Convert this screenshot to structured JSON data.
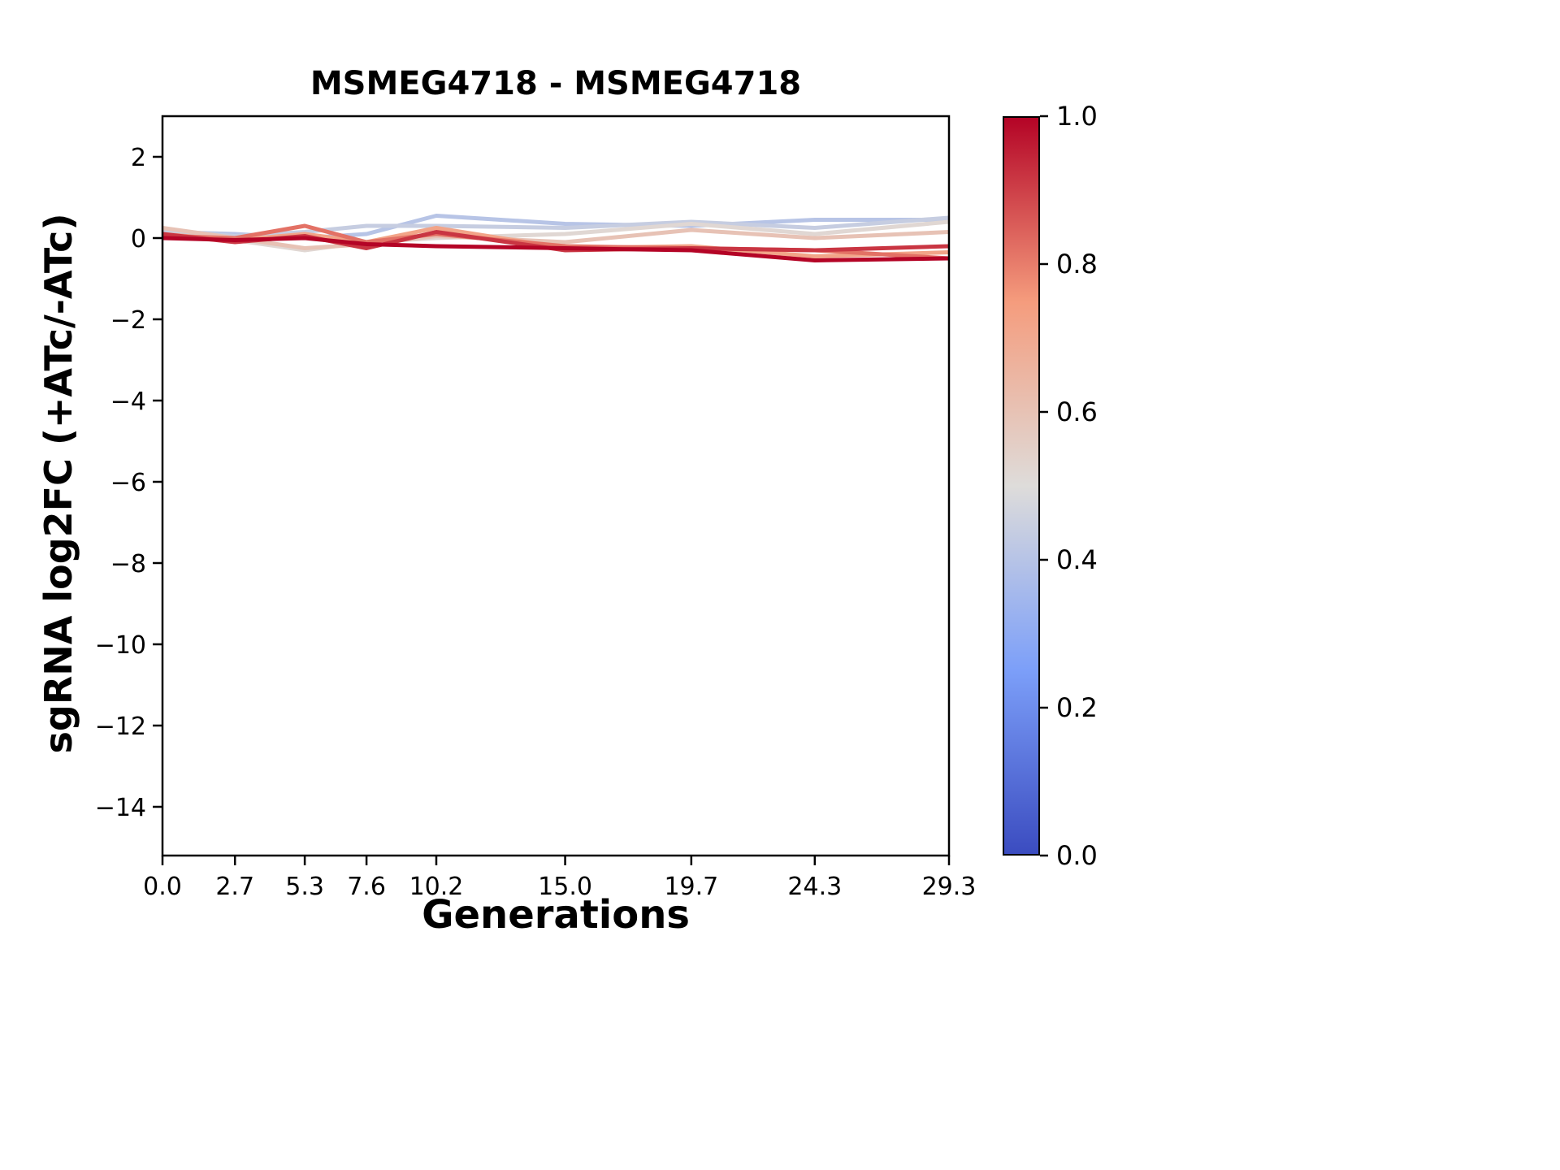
{
  "chart_data": {
    "type": "line",
    "title": "MSMEG4718 - MSMEG4718",
    "xlabel": "Generations",
    "ylabel": "sgRNA log2FC (+ATc/-ATc)",
    "xlim": [
      0.0,
      29.3
    ],
    "ylim": [
      -15.2,
      3.0
    ],
    "grid": false,
    "legend": "none",
    "x": [
      0.0,
      2.7,
      5.3,
      7.6,
      10.2,
      15.0,
      19.7,
      24.3,
      29.3
    ],
    "xtick_labels": [
      "0.0",
      "2.7",
      "5.3",
      "7.6",
      "10.2",
      "15.0",
      "19.7",
      "24.3",
      "29.3"
    ],
    "yticks": [
      2,
      0,
      -2,
      -4,
      -6,
      -8,
      -10,
      -12,
      -14
    ],
    "series": [
      {
        "color_value": 0.4,
        "values": [
          0.15,
          0.1,
          0.0,
          0.1,
          0.55,
          0.35,
          0.3,
          0.45,
          0.45
        ]
      },
      {
        "color_value": 0.44,
        "values": [
          0.2,
          0.05,
          0.15,
          0.3,
          0.3,
          0.25,
          0.4,
          0.25,
          0.5
        ]
      },
      {
        "color_value": 0.52,
        "values": [
          0.1,
          -0.05,
          -0.3,
          -0.1,
          0.0,
          0.1,
          0.35,
          0.1,
          0.4
        ]
      },
      {
        "color_value": 0.6,
        "values": [
          0.25,
          0.0,
          -0.25,
          -0.15,
          0.05,
          -0.1,
          0.2,
          0.0,
          0.15
        ]
      },
      {
        "color_value": 0.72,
        "values": [
          0.1,
          -0.05,
          0.1,
          -0.1,
          0.25,
          -0.25,
          -0.2,
          -0.45,
          -0.35
        ]
      },
      {
        "color_value": 0.82,
        "values": [
          0.05,
          0.0,
          0.3,
          -0.1,
          0.1,
          -0.2,
          -0.25,
          -0.3,
          -0.5
        ]
      },
      {
        "color_value": 0.92,
        "values": [
          0.1,
          -0.1,
          0.05,
          -0.25,
          0.15,
          -0.3,
          -0.25,
          -0.3,
          -0.2
        ]
      },
      {
        "color_value": 1.0,
        "values": [
          0.0,
          -0.05,
          0.0,
          -0.15,
          -0.2,
          -0.25,
          -0.3,
          -0.55,
          -0.5
        ]
      }
    ],
    "line_width": 5,
    "colorbar": {
      "min": 0.0,
      "max": 1.0,
      "ticks": [
        0.0,
        0.2,
        0.4,
        0.6,
        0.8,
        1.0
      ],
      "colormap": "coolwarm",
      "stops": [
        {
          "t": 0.0,
          "color": "#3b4cc0"
        },
        {
          "t": 0.25,
          "color": "#7c9ff9"
        },
        {
          "t": 0.5,
          "color": "#dedcda"
        },
        {
          "t": 0.75,
          "color": "#f59c7d"
        },
        {
          "t": 1.0,
          "color": "#b40426"
        }
      ]
    },
    "colors": {
      "axes": "#000000",
      "background": "#ffffff",
      "text": "#000000"
    }
  }
}
